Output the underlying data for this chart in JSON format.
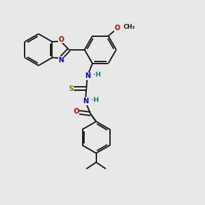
{
  "background_color": "#e8e8e8",
  "bond_color": "#1a1a1a",
  "atom_colors": {
    "N": "#0000ff",
    "O": "#cc0000",
    "S": "#808000",
    "H_label": "#008080",
    "C": "#1a1a1a"
  },
  "figsize": [
    3.0,
    3.0
  ],
  "dpi": 100,
  "xlim": [
    0,
    10
  ],
  "ylim": [
    0,
    10
  ]
}
